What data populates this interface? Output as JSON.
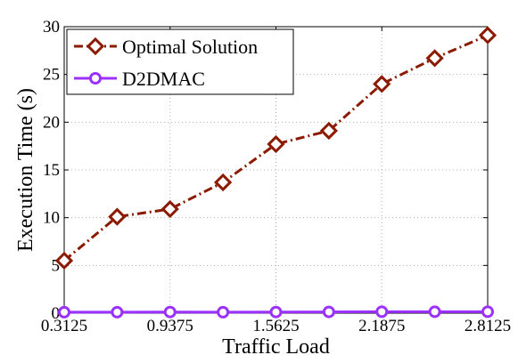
{
  "chart_data": {
    "type": "line",
    "xlabel": "Traffic Load",
    "ylabel": "Execution Time (s)",
    "x": [
      0.3125,
      0.625,
      0.9375,
      1.25,
      1.5625,
      1.875,
      2.1875,
      2.5,
      2.8125
    ],
    "xticks": [
      0.3125,
      0.9375,
      1.5625,
      2.1875,
      2.8125
    ],
    "xtick_labels": [
      "0.3125",
      "0.9375",
      "1.5625",
      "2.1875",
      "2.8125"
    ],
    "xlim": [
      0.3125,
      2.8125
    ],
    "yticks": [
      0,
      5,
      10,
      15,
      20,
      25,
      30
    ],
    "ytick_labels": [
      "0",
      "5",
      "10",
      "15",
      "20",
      "25",
      "30"
    ],
    "ylim": [
      0,
      30
    ],
    "grid": true,
    "legend_position": "top-left",
    "series": [
      {
        "name": "Optimal Solution",
        "values": [
          5.5,
          10.1,
          10.9,
          13.7,
          17.7,
          19.1,
          24.0,
          26.7,
          29.1
        ],
        "color": "#8b1a00",
        "line_style": "dash-dot",
        "marker": "diamond"
      },
      {
        "name": "D2DMAC",
        "values": [
          0.1,
          0.1,
          0.12,
          0.1,
          0.12,
          0.13,
          0.15,
          0.15,
          0.15
        ],
        "color": "#9b30ff",
        "line_style": "solid",
        "marker": "circle"
      }
    ]
  }
}
